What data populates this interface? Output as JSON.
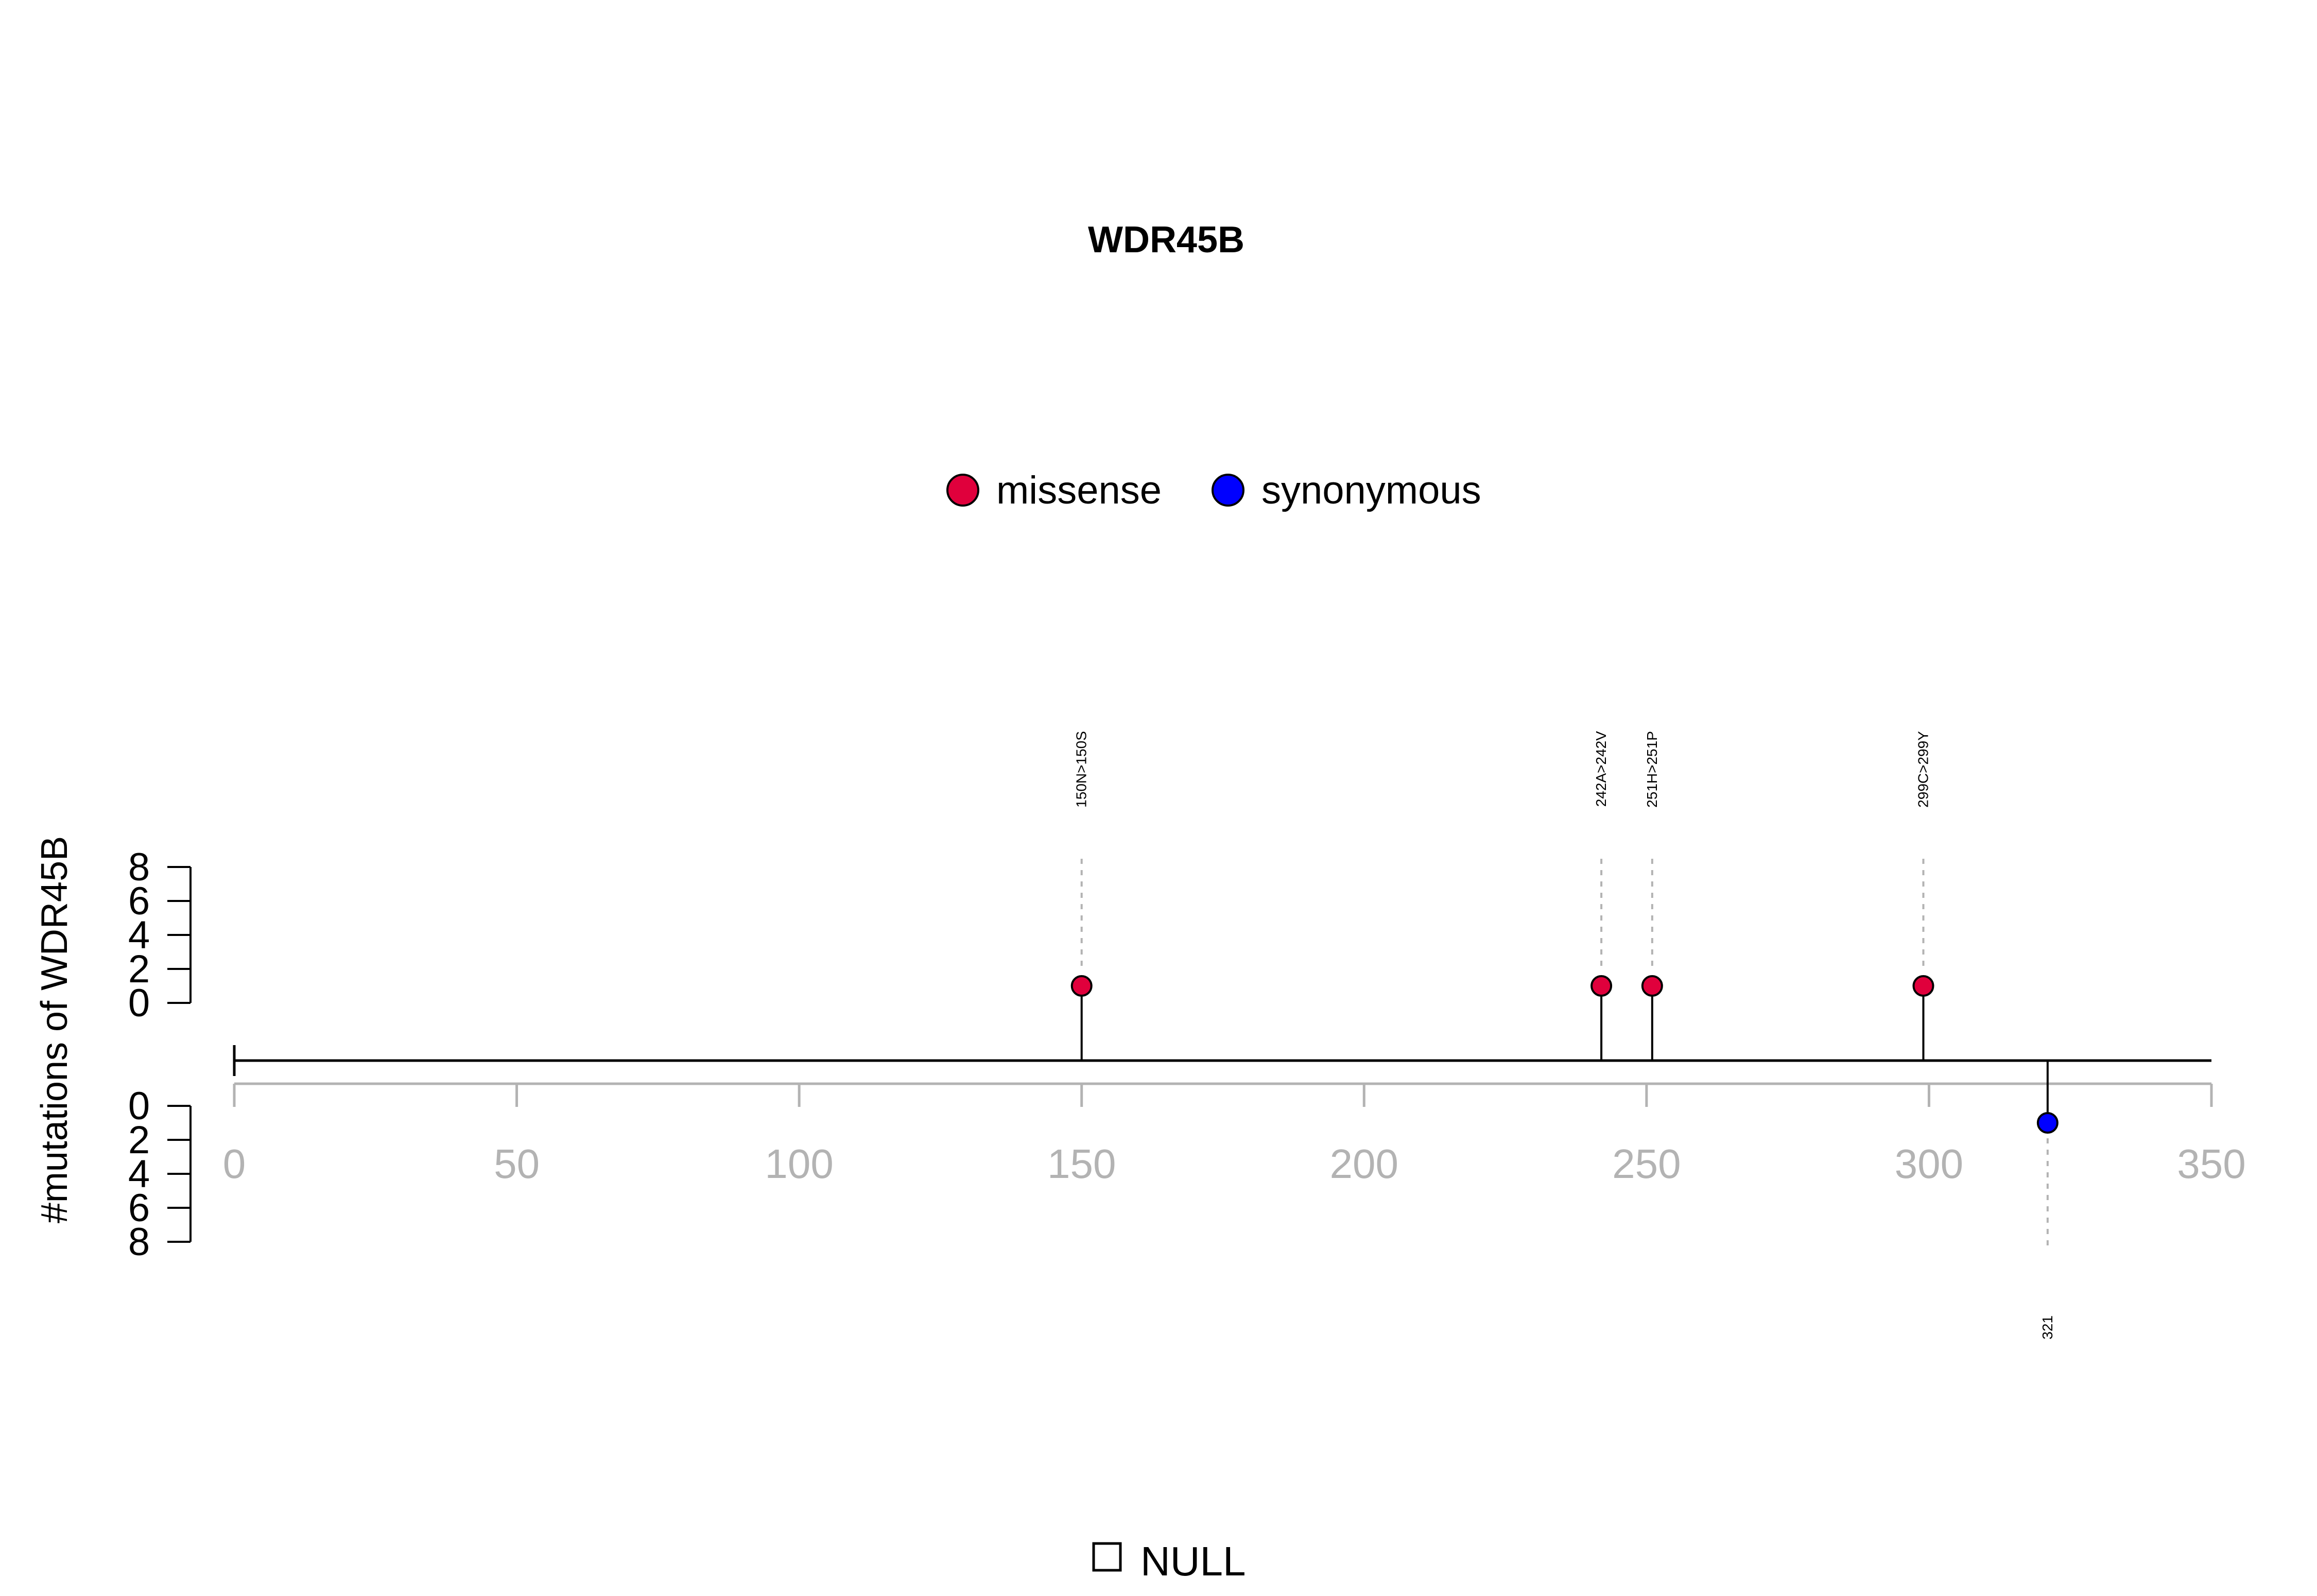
{
  "chart_data": {
    "type": "lollipop",
    "title": "WDR45B",
    "ylabel": "#mutations of WDR45B",
    "xlim": [
      0,
      350
    ],
    "x_ticks": [
      "0",
      "50",
      "100",
      "150",
      "200",
      "250",
      "300",
      "350"
    ],
    "upper_y_ticks": [
      "0",
      "2",
      "4",
      "6",
      "8"
    ],
    "lower_y_ticks": [
      "0",
      "2",
      "4",
      "6",
      "8"
    ],
    "ylim": [
      0,
      8
    ],
    "legend": [
      {
        "label": "missense",
        "color": "#E0003C"
      },
      {
        "label": "synonymous",
        "color": "#0000FF"
      }
    ],
    "domain_legend": "NULL",
    "mutations": [
      {
        "position": 150,
        "count": 1,
        "label": "150N>150S",
        "type": "missense",
        "side": "top"
      },
      {
        "position": 242,
        "count": 1,
        "label": "242A>242V",
        "type": "missense",
        "side": "top"
      },
      {
        "position": 251,
        "count": 1,
        "label": "251H>251P",
        "type": "missense",
        "side": "top"
      },
      {
        "position": 299,
        "count": 1,
        "label": "299C>299Y",
        "type": "missense",
        "side": "top"
      },
      {
        "position": 321,
        "count": 1,
        "label": "321",
        "type": "synonymous",
        "side": "bottom"
      }
    ]
  }
}
